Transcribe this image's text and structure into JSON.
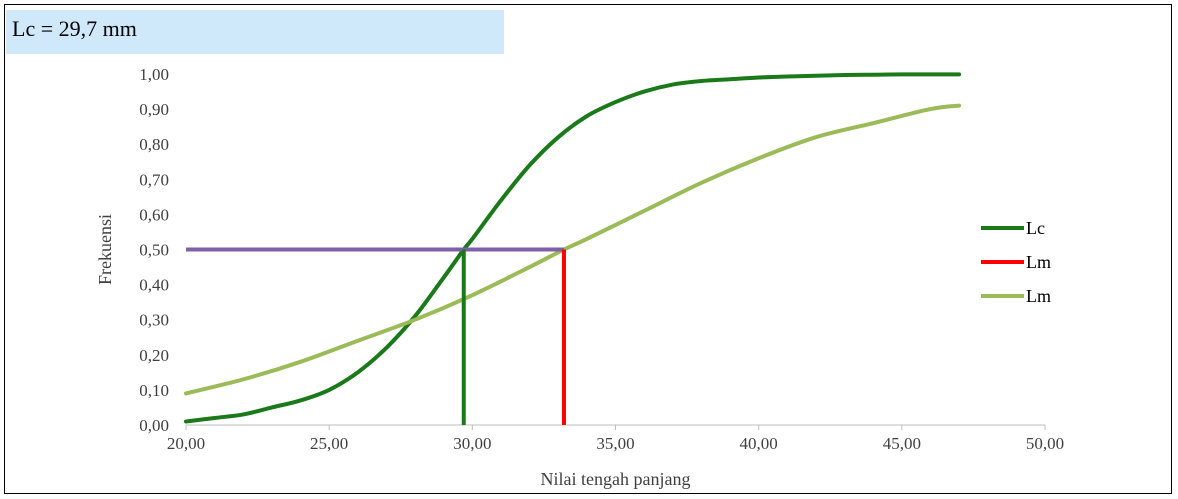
{
  "banner": {
    "text": "Lc = 29,7 mm"
  },
  "chart_data": {
    "type": "line",
    "xlabel": "Nilai tengah panjang",
    "ylabel": "Frekuensi",
    "xlim": [
      20,
      50
    ],
    "ylim": [
      0,
      1
    ],
    "x_ticks": [
      "20,00",
      "25,00",
      "30,00",
      "35,00",
      "40,00",
      "45,00",
      "50,00"
    ],
    "y_ticks": [
      "0,00",
      "0,10",
      "0,20",
      "0,30",
      "0,40",
      "0,50",
      "0,60",
      "0,70",
      "0,80",
      "0,90",
      "1,00"
    ],
    "grid": false,
    "legend_position": "right",
    "legend": [
      "Lc",
      "Lm",
      "Lm"
    ],
    "series": [
      {
        "name": "Lc",
        "color": "#1a7a1a",
        "x": [
          20,
          21,
          22,
          23,
          24,
          25,
          26,
          27,
          28,
          29,
          29.7,
          30,
          31,
          32,
          33,
          34,
          35,
          36,
          37,
          38,
          39,
          40,
          41,
          42,
          43,
          44,
          45,
          46,
          47
        ],
        "y": [
          0.01,
          0.02,
          0.03,
          0.05,
          0.07,
          0.1,
          0.15,
          0.22,
          0.31,
          0.42,
          0.5,
          0.53,
          0.64,
          0.74,
          0.82,
          0.88,
          0.92,
          0.95,
          0.97,
          0.98,
          0.985,
          0.99,
          0.993,
          0.995,
          0.997,
          0.998,
          0.999,
          0.999,
          0.999
        ]
      },
      {
        "name": "Lm",
        "color": "#9bbb59",
        "x": [
          20,
          22,
          24,
          26,
          28,
          30,
          32,
          33.2,
          34,
          36,
          38,
          40,
          42,
          44,
          46,
          47
        ],
        "y": [
          0.09,
          0.13,
          0.18,
          0.24,
          0.3,
          0.37,
          0.45,
          0.5,
          0.53,
          0.61,
          0.69,
          0.76,
          0.82,
          0.86,
          0.9,
          0.91
        ]
      }
    ],
    "reference_lines": [
      {
        "name": "Median",
        "color": "#7f5fa8",
        "x": [
          20,
          33.2
        ],
        "y": [
          0.5,
          0.5
        ]
      },
      {
        "name": "Lc",
        "color": "#1a7a1a",
        "x": [
          29.7,
          29.7
        ],
        "y": [
          0,
          0.5
        ]
      },
      {
        "name": "Lm",
        "color": "#ff0000",
        "x": [
          33.2,
          33.2
        ],
        "y": [
          0,
          0.5
        ]
      }
    ],
    "legend_items": [
      {
        "label": "Lc",
        "color": "#1a7a1a"
      },
      {
        "label": "Lm",
        "color": "#ff0000"
      },
      {
        "label": "Lm",
        "color": "#9bbb59"
      }
    ]
  }
}
